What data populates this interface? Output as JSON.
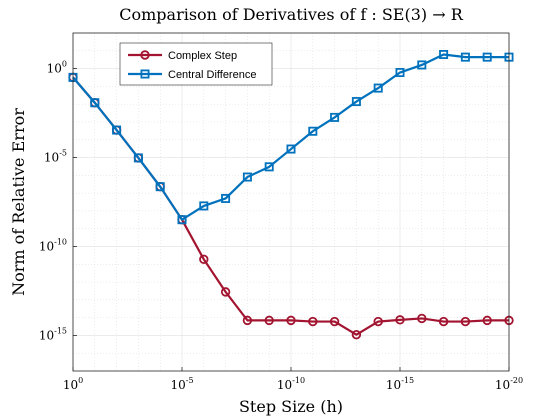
{
  "chart_data": {
    "type": "line",
    "title": "Comparison of Derivatives of f : SE(3) → R",
    "xlabel": "Step Size (h)",
    "ylabel": "Norm of Relative Error",
    "x_scale": "log",
    "y_scale": "log",
    "x_reversed": true,
    "xlim": [
      1,
      1e-20
    ],
    "ylim": [
      1e-17,
      100.0
    ],
    "grid": true,
    "legend_position": "top-left",
    "x_ticks": [
      {
        "base": "10",
        "exp": "0",
        "value": 1
      },
      {
        "base": "10",
        "exp": "-5",
        "value": 1e-05
      },
      {
        "base": "10",
        "exp": "-10",
        "value": 1e-10
      },
      {
        "base": "10",
        "exp": "-15",
        "value": 1e-15
      },
      {
        "base": "10",
        "exp": "-20",
        "value": 1e-20
      }
    ],
    "y_ticks": [
      {
        "base": "10",
        "exp": "0",
        "value": 1
      },
      {
        "base": "10",
        "exp": "-5",
        "value": 1e-05
      },
      {
        "base": "10",
        "exp": "-10",
        "value": 1e-10
      },
      {
        "base": "10",
        "exp": "-15",
        "value": 1e-15
      }
    ],
    "x": [
      1,
      0.1,
      0.01,
      0.001,
      0.0001,
      1e-05,
      1e-06,
      1e-07,
      1e-08,
      1e-09,
      1e-10,
      1e-11,
      1e-12,
      1e-13,
      1e-14,
      1e-15,
      1e-16,
      1e-17,
      1e-18,
      1e-19,
      1e-20
    ],
    "series": [
      {
        "name": "Complex Step",
        "color": "#A2142F",
        "marker": "circle",
        "values": [
          0.32,
          0.012,
          0.00035,
          9.5e-06,
          2.3e-07,
          3.2e-09,
          1.9e-11,
          2.8e-13,
          7e-15,
          7e-15,
          7e-15,
          6e-15,
          6e-15,
          1.1e-15,
          6e-15,
          7.5e-15,
          9e-15,
          6e-15,
          6e-15,
          7e-15,
          7e-15
        ]
      },
      {
        "name": "Central Difference",
        "color": "#0072BD",
        "marker": "square",
        "values": [
          0.32,
          0.012,
          0.00035,
          9.5e-06,
          2.3e-07,
          3.2e-09,
          1.9e-08,
          5e-08,
          8e-07,
          3e-06,
          3e-05,
          0.0003,
          0.0018,
          0.014,
          0.08,
          0.6,
          1.6,
          6.2,
          4.4,
          4.4,
          4.4
        ]
      }
    ]
  }
}
